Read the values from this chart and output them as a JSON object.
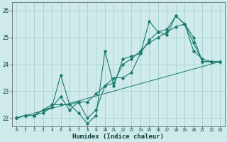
{
  "xlabel": "Humidex (Indice chaleur)",
  "background_color": "#ceeaea",
  "grid_color": "#a8d0d0",
  "line_color": "#1a7a6e",
  "xlim": [
    -0.5,
    23.5
  ],
  "ylim": [
    21.7,
    26.3
  ],
  "yticks": [
    22,
    23,
    24,
    25,
    26
  ],
  "xticks": [
    0,
    1,
    2,
    3,
    4,
    5,
    6,
    7,
    8,
    9,
    10,
    11,
    12,
    13,
    14,
    15,
    16,
    17,
    18,
    19,
    20,
    21,
    22,
    23
  ],
  "series1_x": [
    0,
    1,
    2,
    3,
    4,
    5,
    6,
    7,
    8,
    9,
    10,
    11,
    12,
    13,
    14,
    15,
    16,
    17,
    18,
    19,
    20,
    21,
    22,
    23
  ],
  "series1_y": [
    22.0,
    22.1,
    22.1,
    22.2,
    22.4,
    23.6,
    22.5,
    22.2,
    21.8,
    22.1,
    24.5,
    23.2,
    24.2,
    24.3,
    24.4,
    25.6,
    25.2,
    25.1,
    25.8,
    25.5,
    25.0,
    24.1,
    24.1,
    24.1
  ],
  "series2_x": [
    0,
    1,
    2,
    3,
    4,
    5,
    6,
    7,
    8,
    9,
    10,
    11,
    12,
    13,
    14,
    15,
    16,
    17,
    18,
    19,
    20,
    21,
    22,
    23
  ],
  "series2_y": [
    22.0,
    22.1,
    22.1,
    22.3,
    22.4,
    22.8,
    22.3,
    22.6,
    22.6,
    22.9,
    23.2,
    23.3,
    24.0,
    24.2,
    24.5,
    24.8,
    25.0,
    25.2,
    25.4,
    25.5,
    24.5,
    24.2,
    24.1,
    24.1
  ],
  "series3_x": [
    0,
    1,
    2,
    3,
    4,
    5,
    6,
    7,
    8,
    9,
    10,
    11,
    12,
    13,
    14,
    15,
    16,
    17,
    18,
    19,
    20,
    21,
    22,
    23
  ],
  "series3_y": [
    22.0,
    22.1,
    22.1,
    22.3,
    22.5,
    22.5,
    22.5,
    22.6,
    22.0,
    22.3,
    23.2,
    23.5,
    23.5,
    23.7,
    24.4,
    24.9,
    25.2,
    25.3,
    25.8,
    25.5,
    24.8,
    24.1,
    24.1,
    24.1
  ],
  "trend_x": [
    0,
    23
  ],
  "trend_y": [
    22.0,
    24.1
  ]
}
